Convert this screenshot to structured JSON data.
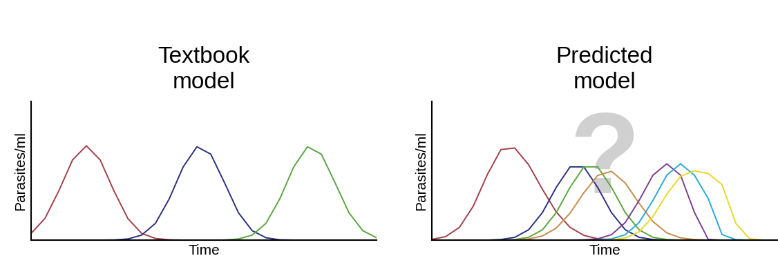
{
  "chart_data": [
    {
      "type": "line",
      "title": "Textbook\nmodel",
      "x_label": "Time",
      "y_label": "Parasites/ml",
      "x": [
        0,
        4,
        8,
        12,
        16,
        20,
        24,
        28,
        32,
        36,
        40,
        44,
        48,
        52,
        56,
        60,
        64,
        68,
        72,
        76,
        80,
        84,
        88,
        92,
        96,
        100
      ],
      "xlim": [
        0,
        100
      ],
      "ylim": [
        0,
        100
      ],
      "tick_labels": false,
      "series": [
        {
          "color": "#a0404a",
          "values": [
            4.8,
            15.6,
            35.4,
            57.8,
            68,
            57.8,
            35.4,
            15.6,
            4.8,
            1.2,
            0.2,
            0,
            0,
            0,
            0,
            0,
            0,
            0,
            0,
            0,
            0,
            0,
            0,
            0,
            0,
            0
          ]
        },
        {
          "color": "#2b2f7f",
          "values": [
            0,
            0,
            0,
            0,
            0,
            0,
            0.1,
            0.8,
            3.6,
            12.1,
            29.8,
            52.7,
            67.3,
            62.0,
            41.3,
            19.8,
            6.8,
            1.7,
            0.2,
            0,
            0,
            0,
            0,
            0,
            0,
            0
          ]
        },
        {
          "color": "#5aa53f",
          "values": [
            0,
            0,
            0,
            0,
            0,
            0,
            0,
            0,
            0,
            0,
            0,
            0,
            0,
            0,
            0.1,
            0.8,
            3.6,
            12.1,
            29.8,
            52.7,
            67.3,
            62.0,
            41.3,
            19.8,
            6.8,
            1.7
          ]
        }
      ]
    },
    {
      "type": "line",
      "title": "Predicted\nmodel",
      "x_label": "Time",
      "y_label": "Parasites/ml",
      "annotation": "?",
      "x": [
        0,
        4,
        8,
        12,
        16,
        20,
        24,
        28,
        32,
        36,
        40,
        44,
        48,
        52,
        56,
        60,
        64,
        68,
        72,
        76,
        80,
        84,
        88,
        92,
        96,
        100
      ],
      "xlim": [
        0,
        100
      ],
      "ylim": [
        0,
        100
      ],
      "tick_labels": false,
      "series": [
        {
          "color": "#a0404a",
          "values": [
            0.5,
            2.5,
            9.2,
            24.5,
            46.9,
            65.3,
            66.4,
            54.4,
            36.7,
            20.3,
            9.2,
            3.4,
            1.0,
            0.2,
            0,
            0,
            0,
            0,
            0,
            0,
            0,
            0,
            0,
            0,
            0,
            0
          ]
        },
        {
          "color": "#2b2f7f",
          "values": [
            0,
            0,
            0,
            0,
            0,
            0.4,
            2.0,
            7.4,
            19.8,
            38.0,
            52.8,
            52.8,
            38.0,
            19.8,
            7.4,
            2.0,
            0.4,
            0,
            0,
            0,
            0,
            0,
            0,
            0,
            0,
            0
          ]
        },
        {
          "color": "#5aa53f",
          "values": [
            0,
            0,
            0,
            0,
            0,
            0,
            0.4,
            2.0,
            7.4,
            19.8,
            38.0,
            52.8,
            52.8,
            38.0,
            19.8,
            7.4,
            2.0,
            0.4,
            0,
            0,
            0,
            0,
            0,
            0,
            0,
            0
          ]
        },
        {
          "color": "#c98a4a",
          "values": [
            0,
            0,
            0,
            0,
            0,
            0,
            0.1,
            0.8,
            3.0,
            8.6,
            19.4,
            34.1,
            46.6,
            49.6,
            41.1,
            26.6,
            13.4,
            5.2,
            1.6,
            0.4,
            0,
            0,
            0,
            0,
            0,
            0
          ]
        },
        {
          "color": "#7b3f8f",
          "values": [
            0,
            0,
            0,
            0,
            0,
            0,
            0,
            0,
            0,
            0,
            0,
            0.2,
            0.9,
            3.9,
            12.7,
            28.6,
            46.8,
            55,
            46.8,
            20.0,
            0.5,
            0,
            0,
            0,
            0,
            0
          ]
        },
        {
          "color": "#2aa8d8",
          "values": [
            0,
            0,
            0,
            0,
            0,
            0,
            0,
            0,
            0,
            0,
            0,
            0,
            0.2,
            0.9,
            3.9,
            12.7,
            28.6,
            46.8,
            55,
            46.8,
            30.0,
            4.0,
            0.3,
            0,
            0,
            0
          ]
        },
        {
          "color": "#e8d92a",
          "values": [
            0,
            0,
            0,
            0,
            0,
            0,
            0,
            0,
            0,
            0,
            0,
            0,
            0,
            0.3,
            1.5,
            6.0,
            17.0,
            33.0,
            46.0,
            50.0,
            48.0,
            40.0,
            12.0,
            1.0,
            0,
            0
          ]
        }
      ]
    }
  ]
}
